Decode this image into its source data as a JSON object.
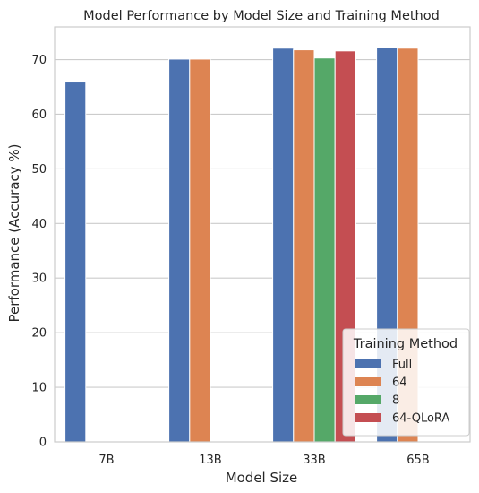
{
  "chart_data": {
    "type": "bar",
    "title": "Model Performance by Model Size and Training Method",
    "xlabel": "Model Size",
    "ylabel": "Performance (Accuracy %)",
    "categories": [
      "7B",
      "13B",
      "33B",
      "65B"
    ],
    "ylim": [
      0,
      76
    ],
    "yticks": [
      0,
      10,
      20,
      30,
      40,
      50,
      60,
      70
    ],
    "grid": true,
    "legend": {
      "title": "Training Method",
      "placement": "bottom-right"
    },
    "series": [
      {
        "name": "Full",
        "color": "#4c72b0",
        "values": [
          65.9,
          70.1,
          72.1,
          72.2
        ]
      },
      {
        "name": "64",
        "color": "#dd8452",
        "values": [
          null,
          70.1,
          71.8,
          72.1
        ]
      },
      {
        "name": "8",
        "color": "#55a868",
        "values": [
          null,
          null,
          70.3,
          null
        ]
      },
      {
        "name": "64-QLoRA",
        "color": "#c44e52",
        "values": [
          null,
          null,
          71.6,
          null
        ]
      }
    ]
  }
}
